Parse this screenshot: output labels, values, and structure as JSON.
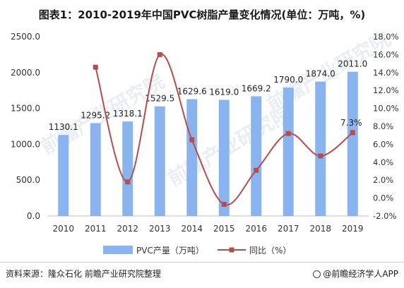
{
  "title": "图表1：2010-2019年中国PVC树脂产量变化情况(单位：万吨，%)",
  "source": "资料来源：隆众石化 前瞻产业研究院整理",
  "brand": "@前瞻经济学人APP",
  "watermark": "前瞻产业研究院",
  "colors": {
    "bar": "#8AB4F0",
    "line": "#B84C4A"
  },
  "chart_data": {
    "type": "bar",
    "categories": [
      "2010",
      "2011",
      "2012",
      "2013",
      "2014",
      "2015",
      "2016",
      "2017",
      "2018",
      "2019"
    ],
    "series": [
      {
        "name": "PVC产量（万吨）",
        "type": "bar",
        "axis": "left",
        "values": [
          1130.1,
          1295.2,
          1318.1,
          1529.5,
          1629.6,
          1619.0,
          1669.2,
          1790.0,
          1874.0,
          2011.0
        ],
        "labels": [
          "1130.1",
          "1295.2",
          "1318.1",
          "1529.5",
          "1629.6",
          "1619.0",
          "1669.2",
          "1790.0",
          "1874.0",
          "2011.0"
        ]
      },
      {
        "name": "同比（%）",
        "type": "line",
        "axis": "right",
        "values": [
          null,
          14.6,
          1.8,
          16.0,
          6.5,
          -0.7,
          3.1,
          7.2,
          4.7,
          7.3
        ],
        "labels": [
          "",
          "",
          "",
          "",
          "",
          "",
          "",
          "",
          "",
          "7.3%"
        ]
      }
    ],
    "y_left": {
      "min": 0,
      "max": 2500,
      "step": 500,
      "ticks": [
        "0.0",
        "500.0",
        "1000.0",
        "1500.0",
        "2000.0",
        "2500.0"
      ]
    },
    "y_right": {
      "min": -2,
      "max": 18,
      "step": 2,
      "ticks": [
        "-2.0%",
        "0.0%",
        "2.0%",
        "4.0%",
        "6.0%",
        "8.0%",
        "10.0%",
        "12.0%",
        "14.0%",
        "16.0%",
        "18.0%"
      ]
    },
    "grid": false,
    "legend_position": "bottom"
  }
}
